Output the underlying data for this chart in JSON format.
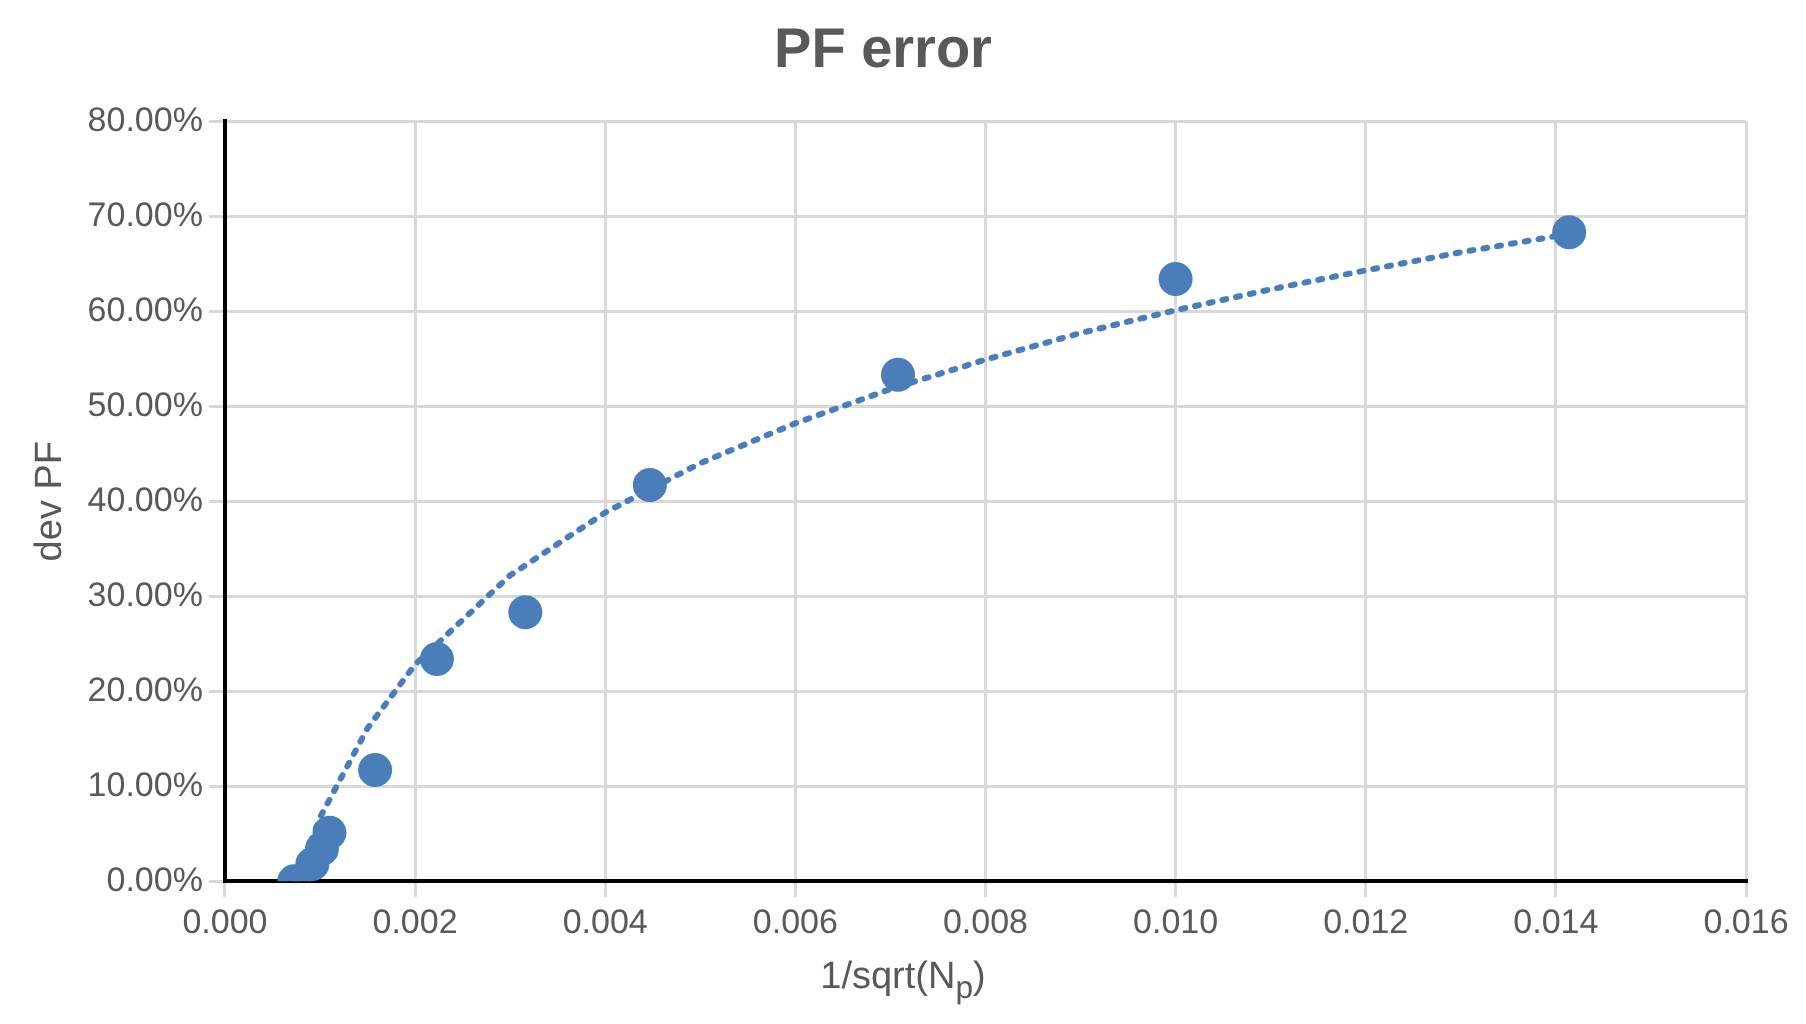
{
  "chart_data": {
    "type": "scatter",
    "title": "PF error",
    "xlabel": "1/sqrt(N$_{p}$)",
    "ylabel": "dev PF",
    "xlim": [
      0,
      0.016
    ],
    "xticks": [
      {
        "value": 0,
        "label": "0.000"
      },
      {
        "value": 0.002,
        "label": "0.002"
      },
      {
        "value": 0.004,
        "label": "0.004"
      },
      {
        "value": 0.006,
        "label": "0.006"
      },
      {
        "value": 0.008,
        "label": "0.008"
      },
      {
        "value": 0.01,
        "label": "0.010"
      },
      {
        "value": 0.012,
        "label": "0.012"
      },
      {
        "value": 0.014,
        "label": "0.014"
      },
      {
        "value": 0.016,
        "label": "0.016"
      }
    ],
    "ylim": [
      0,
      80
    ],
    "yticks": [
      {
        "value": 0,
        "label": "0.00%"
      },
      {
        "value": 10,
        "label": "10.00%"
      },
      {
        "value": 20,
        "label": "20.00%"
      },
      {
        "value": 30,
        "label": "30.00%"
      },
      {
        "value": 40,
        "label": "40.00%"
      },
      {
        "value": 50,
        "label": "50.00%"
      },
      {
        "value": 60,
        "label": "60.00%"
      },
      {
        "value": 70,
        "label": "70.00%"
      },
      {
        "value": 80,
        "label": "80.00%"
      }
    ],
    "grid": true,
    "legend": false,
    "series": [
      {
        "type": "scatter",
        "color": "#4a7ebb",
        "marker": "circle",
        "x": [
          0.00073,
          0.00092,
          0.00102,
          0.0011,
          0.00158,
          0.00223,
          0.00316,
          0.00447,
          0.00708,
          0.01,
          0.01414
        ],
        "values": [
          0,
          1.8,
          3.4,
          5.1,
          11.7,
          23.4,
          28.3,
          41.7,
          53.3,
          63.4,
          68.3
        ]
      },
      {
        "type": "line",
        "color": "#4a7ebb",
        "marker": "none",
        "line_style": "dotted",
        "x": [
          0.00075,
          0.001,
          0.0015,
          0.002,
          0.003,
          0.004,
          0.005,
          0.006,
          0.007,
          0.008,
          0.009,
          0.01,
          0.011,
          0.012,
          0.013,
          0.014,
          0.01414
        ],
        "values": [
          0,
          6.7,
          16.1,
          22.8,
          32.2,
          38.8,
          44,
          48.2,
          51.8,
          54.9,
          57.7,
          60.1,
          62.3,
          64.3,
          66.2,
          67.9,
          68.1
        ]
      }
    ]
  }
}
